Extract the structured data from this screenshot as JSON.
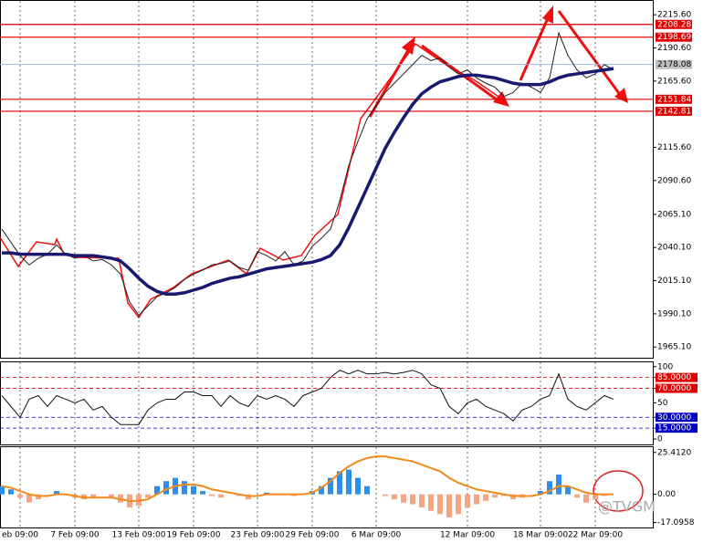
{
  "chart_data": [
    {
      "type": "line",
      "ylim": [
        1957,
        2226
      ],
      "yticks": [
        {
          "value": 2215.6,
          "label": "2215.60"
        },
        {
          "value": 2190.6,
          "label": "2190.60"
        },
        {
          "value": 2165.6,
          "label": "2165.60"
        },
        {
          "value": 2115.6,
          "label": "2115.60"
        },
        {
          "value": 2090.6,
          "label": "2090.60"
        },
        {
          "value": 2065.1,
          "label": "2065.10"
        },
        {
          "value": 2040.1,
          "label": "2040.10"
        },
        {
          "value": 2015.1,
          "label": "2015.10"
        },
        {
          "value": 1990.1,
          "label": "1990.10"
        },
        {
          "value": 1965.1,
          "label": "1965.10"
        }
      ],
      "hlines": [
        2208.28,
        2198.69,
        2151.84,
        2142.81
      ],
      "hline_color": "#e00000",
      "current_price": 2178.08,
      "current_color": "#9fb4e0",
      "series": [
        {
          "color": "#222222",
          "width": 1,
          "values": [
            2054,
            2044,
            2034,
            2027,
            2032,
            2035,
            2042,
            2035,
            2032,
            2034,
            2030,
            2031,
            2027,
            2020,
            1999,
            1989,
            1996,
            2003,
            2006,
            2010,
            2016,
            2020,
            2023,
            2027,
            2028,
            2030,
            2025,
            2023,
            2037,
            2034,
            2030,
            2037,
            2027,
            2030,
            2041,
            2047,
            2054,
            2075,
            2102,
            2120,
            2137,
            2147,
            2157,
            2164,
            2171,
            2178,
            2185,
            2181,
            2183,
            2176,
            2171,
            2174,
            2168,
            2164,
            2161,
            2154,
            2157,
            2164,
            2161,
            2157,
            2168,
            2202,
            2185,
            2174,
            2168,
            2171,
            2178,
            2174
          ]
        },
        {
          "color": "#191970",
          "width": 3.5,
          "values": [
            2036,
            2036,
            2035,
            2035,
            2035,
            2035,
            2035,
            2035,
            2034,
            2034,
            2034,
            2033,
            2032,
            2030,
            2024,
            2017,
            2011,
            2007,
            2005,
            2005,
            2006,
            2008,
            2010,
            2013,
            2015,
            2017,
            2018,
            2020,
            2022,
            2024,
            2025,
            2026,
            2027,
            2028,
            2029,
            2031,
            2034,
            2042,
            2055,
            2070,
            2085,
            2100,
            2115,
            2127,
            2138,
            2148,
            2156,
            2161,
            2165,
            2167,
            2169,
            2170,
            2170,
            2169,
            2168,
            2166,
            2164,
            2163,
            2163,
            2163,
            2165,
            2168,
            2170,
            2171,
            2172,
            2173,
            2174,
            2175
          ]
        }
      ]
    },
    {
      "type": "line",
      "ylim": [
        -7.5,
        106
      ],
      "yticks": [
        100,
        {
          "value": 85,
          "label": "85.0000"
        },
        {
          "value": 70,
          "label": "70.0000"
        },
        50,
        {
          "value": 30,
          "label": "30.0000"
        },
        {
          "value": 15,
          "label": "15.0000"
        },
        0
      ],
      "tick_box_colors": [
        null,
        "#e00000",
        "#e00000",
        null,
        "#0000c0",
        "#0000c0",
        null
      ],
      "series": [
        {
          "color": "#111111",
          "width": 1,
          "values": [
            60,
            45,
            30,
            55,
            60,
            45,
            60,
            55,
            50,
            55,
            40,
            45,
            30,
            20,
            20,
            20,
            40,
            50,
            55,
            55,
            65,
            65,
            60,
            60,
            45,
            60,
            50,
            45,
            60,
            55,
            60,
            55,
            45,
            60,
            65,
            70,
            85,
            95,
            90,
            95,
            90,
            90,
            92,
            90,
            92,
            95,
            90,
            75,
            70,
            45,
            35,
            50,
            55,
            45,
            40,
            35,
            25,
            40,
            45,
            55,
            60,
            90,
            55,
            45,
            40,
            50,
            60,
            55
          ]
        }
      ]
    },
    {
      "type": "bar",
      "ylim": [
        -20.1,
        28.6
      ],
      "yticks": [
        {
          "value": 25.412,
          "label": "25.4120"
        },
        {
          "value": 0,
          "label": "0.00"
        },
        {
          "value": -17.0958,
          "label": "-17.0958"
        }
      ],
      "colors": {
        "positive": "#2e8fe8",
        "negative": "#f4a582"
      },
      "categories": [
        null,
        null,
        "eb 09:00",
        null,
        null,
        null,
        null,
        null,
        "7 Feb 09:00",
        null,
        null,
        null,
        null,
        null,
        null,
        "13 Feb 09:00",
        null,
        null,
        null,
        null,
        null,
        "19 Feb 09:00",
        null,
        null,
        null,
        null,
        null,
        null,
        "23 Feb 09:00",
        null,
        null,
        null,
        null,
        null,
        "29 Feb 09:00",
        null,
        null,
        null,
        null,
        null,
        null,
        "6 Mar 09:00",
        null,
        null,
        null,
        null,
        null,
        null,
        null,
        null,
        null,
        "12 Mar 09:00",
        null,
        null,
        null,
        null,
        null,
        null,
        null,
        "18 Mar 09:00",
        null,
        null,
        null,
        null,
        null,
        "22 Mar 09:00",
        null,
        null
      ],
      "values": [
        5,
        3,
        -2,
        -5,
        -3,
        0,
        2,
        0,
        -2,
        -3,
        -2,
        0,
        -2,
        -5,
        -8,
        -7,
        -2,
        5,
        8,
        10,
        8,
        5,
        2,
        -1,
        -2,
        0,
        -1,
        -3,
        0,
        1,
        0,
        0,
        -1,
        0,
        2,
        5,
        10,
        14,
        15,
        10,
        5,
        0,
        -1,
        -3,
        -5,
        -6,
        -8,
        -10,
        -12,
        -14,
        -12,
        -8,
        -6,
        -4,
        -2,
        -1,
        -3,
        -2,
        0,
        2,
        8,
        12,
        5,
        -2,
        -5,
        -3,
        -1,
        0
      ],
      "series": [
        {
          "color": "#f08a1c",
          "width": 2,
          "values": [
            5,
            4,
            2,
            0,
            -1,
            -1,
            0,
            0,
            -1,
            -2,
            -2,
            -2,
            -2,
            -3,
            -4,
            -4,
            -3,
            0,
            3,
            5,
            6,
            6,
            5,
            3,
            2,
            1,
            0,
            -1,
            -1,
            0,
            0,
            0,
            0,
            0,
            1,
            4,
            8,
            13,
            17,
            20,
            22,
            23,
            23,
            22,
            21,
            20,
            18,
            16,
            14,
            10,
            7,
            5,
            3,
            2,
            1,
            0,
            -1,
            -1,
            -1,
            0,
            2,
            5,
            5,
            3,
            1,
            0,
            0,
            0
          ]
        }
      ]
    }
  ],
  "watermark": "@TVGM"
}
